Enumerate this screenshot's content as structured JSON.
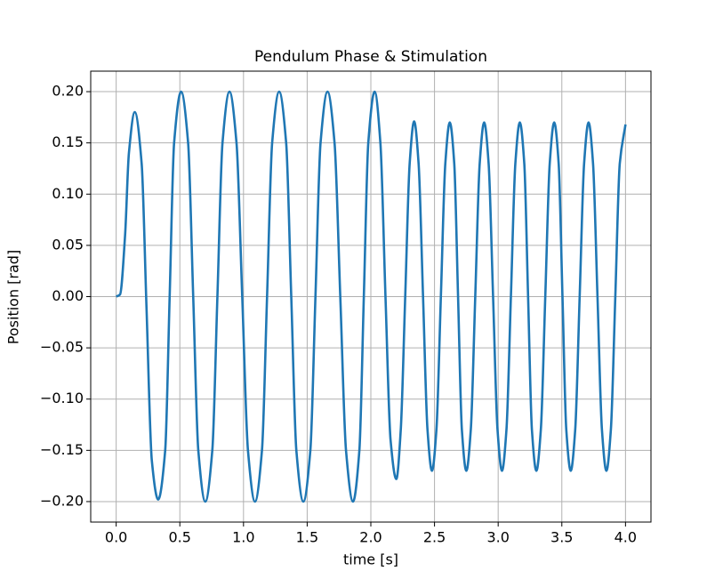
{
  "chart_data": {
    "type": "line",
    "title": "Pendulum Phase & Stimulation",
    "x_label": "time [s]",
    "y_label": "Position [rad]",
    "grid": true,
    "xlim": [
      -0.2,
      4.2
    ],
    "ylim": [
      -0.22,
      0.22
    ],
    "xticks": [
      {
        "value": 0,
        "label": "0.0"
      },
      {
        "value": 0.5,
        "label": "0.5"
      },
      {
        "value": 1,
        "label": "1.0"
      },
      {
        "value": 1.5,
        "label": "1.5"
      },
      {
        "value": 2,
        "label": "2.0"
      },
      {
        "value": 2.5,
        "label": "2.5"
      },
      {
        "value": 3,
        "label": "3.0"
      },
      {
        "value": 3.5,
        "label": "3.5"
      },
      {
        "value": 4,
        "label": "4.0"
      }
    ],
    "yticks": [
      {
        "value": -0.2,
        "label": "−0.20"
      },
      {
        "value": -0.15,
        "label": "−0.15"
      },
      {
        "value": -0.1,
        "label": "−0.10"
      },
      {
        "value": -0.05,
        "label": "−0.05"
      },
      {
        "value": 0,
        "label": "0.00"
      },
      {
        "value": 0.05,
        "label": "0.05"
      },
      {
        "value": 0.1,
        "label": "0.10"
      },
      {
        "value": 0.15,
        "label": "0.15"
      },
      {
        "value": 0.2,
        "label": "0.20"
      }
    ],
    "series": [
      {
        "color": "#1f77b4",
        "x": [
          0.0,
          0.03,
          0.07,
          0.1,
          0.146,
          0.2,
          0.238,
          0.28,
          0.33,
          0.385,
          0.42,
          0.455,
          0.51,
          0.565,
          0.605,
          0.645,
          0.7,
          0.755,
          0.795,
          0.835,
          0.89,
          0.945,
          0.99,
          1.035,
          1.09,
          1.145,
          1.185,
          1.225,
          1.28,
          1.335,
          1.375,
          1.415,
          1.47,
          1.525,
          1.565,
          1.605,
          1.66,
          1.715,
          1.76,
          1.805,
          1.86,
          1.91,
          1.945,
          1.98,
          2.03,
          2.075,
          2.115,
          2.155,
          2.2,
          2.235,
          2.27,
          2.305,
          2.34,
          2.375,
          2.41,
          2.445,
          2.48,
          2.515,
          2.55,
          2.585,
          2.62,
          2.655,
          2.685,
          2.715,
          2.75,
          2.785,
          2.82,
          2.855,
          2.89,
          2.925,
          2.96,
          2.995,
          3.03,
          3.065,
          3.1,
          3.135,
          3.17,
          3.205,
          3.235,
          3.265,
          3.3,
          3.335,
          3.37,
          3.405,
          3.44,
          3.475,
          3.505,
          3.535,
          3.57,
          3.605,
          3.64,
          3.675,
          3.71,
          3.745,
          3.78,
          3.815,
          3.85,
          3.885,
          3.92,
          3.955,
          4.0
        ],
        "values": [
          0,
          0.002,
          0.06,
          0.14,
          0.18,
          0.13,
          -0.01,
          -0.16,
          -0.198,
          -0.15,
          0,
          0.15,
          0.2,
          0.15,
          0,
          -0.15,
          -0.2,
          -0.15,
          0,
          0.15,
          0.2,
          0.15,
          0,
          -0.15,
          -0.2,
          -0.15,
          0,
          0.15,
          0.2,
          0.15,
          0,
          -0.15,
          -0.2,
          -0.15,
          0,
          0.15,
          0.2,
          0.15,
          0,
          -0.15,
          -0.2,
          -0.15,
          0,
          0.15,
          0.2,
          0.15,
          0,
          -0.14,
          -0.178,
          -0.13,
          0,
          0.13,
          0.171,
          0.13,
          0,
          -0.13,
          -0.17,
          -0.13,
          0,
          0.13,
          0.17,
          0.13,
          0,
          -0.13,
          -0.17,
          -0.13,
          0,
          0.13,
          0.17,
          0.13,
          0,
          -0.13,
          -0.17,
          -0.13,
          0,
          0.13,
          0.17,
          0.13,
          0,
          -0.13,
          -0.17,
          -0.13,
          0,
          0.13,
          0.17,
          0.13,
          0,
          -0.13,
          -0.17,
          -0.13,
          0,
          0.13,
          0.17,
          0.13,
          0,
          -0.13,
          -0.17,
          -0.13,
          0,
          0.13,
          0.168
        ]
      }
    ]
  }
}
